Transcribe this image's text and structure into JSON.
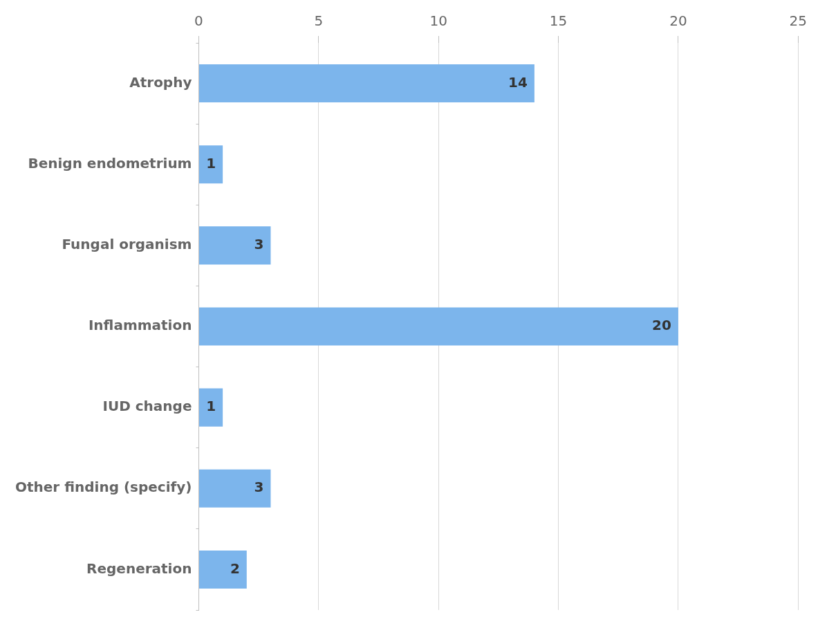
{
  "chart_data": {
    "type": "bar",
    "orientation": "horizontal",
    "categories": [
      "Atrophy",
      "Benign endometrium",
      "Fungal organism",
      "Inflammation",
      "IUD change",
      "Other finding (specify)",
      "Regeneration"
    ],
    "values": [
      14,
      1,
      3,
      20,
      1,
      3,
      2
    ],
    "color": "#7cb5ec",
    "xlim": [
      0,
      25
    ],
    "xticks": [
      0,
      5,
      10,
      15,
      20,
      25
    ],
    "grid": "x",
    "data_labels": true
  }
}
